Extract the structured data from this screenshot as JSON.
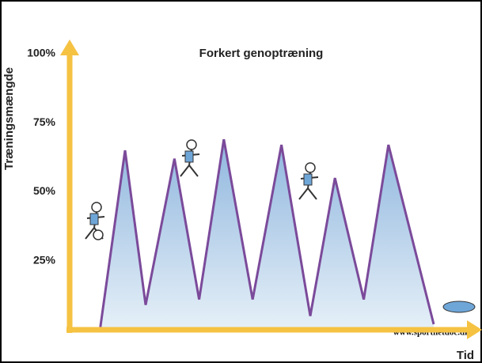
{
  "chart_data": {
    "type": "area",
    "title": "Forkert genoptræning",
    "ylabel": "Træningsmængde",
    "xlabel": "Tid",
    "watermark": "www.sportnetdoc.dk",
    "x": [
      9,
      15,
      20,
      27,
      33,
      39,
      46,
      53,
      60,
      66,
      73,
      79,
      90
    ],
    "series": [
      {
        "name": "Træningsmængde",
        "color": "#7b4a9a",
        "fill": "#b9d4ea",
        "values": [
          1,
          65,
          9,
          62,
          11,
          69,
          11,
          67,
          5,
          55,
          11,
          67,
          2
        ]
      }
    ],
    "xlim": [
      0,
      100
    ],
    "ylim": [
      0,
      100
    ],
    "yticks": [
      {
        "value": 25,
        "label": "25%"
      },
      {
        "value": 50,
        "label": "50%"
      },
      {
        "value": 75,
        "label": "75%"
      },
      {
        "value": 100,
        "label": "100%"
      }
    ],
    "axis_color": "#f5c242",
    "grid": false
  }
}
